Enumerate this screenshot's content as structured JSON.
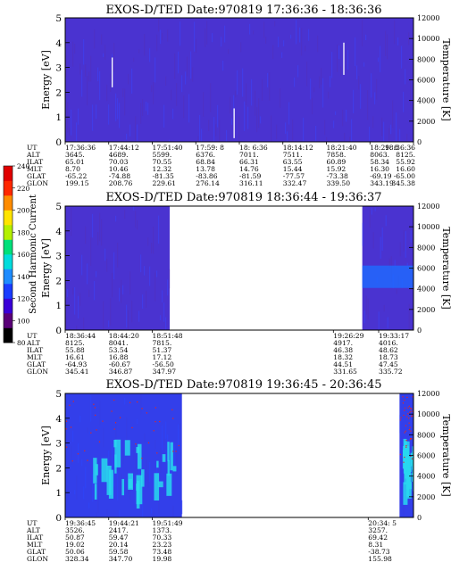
{
  "chart_data": [
    {
      "type": "heatmap",
      "title": "EXOS-D/TED   Date:970819   17:36:36 - 18:36:36",
      "ylabel": "Energy [eV]",
      "y2label": "Temperature [K]",
      "ylim": [
        0,
        5
      ],
      "y2lim": [
        0,
        12000
      ],
      "yticks": [
        "0",
        "1",
        "2",
        "3",
        "4",
        "5"
      ],
      "y2ticks": [
        "0",
        "2000",
        "4000",
        "6000",
        "8000",
        "10000",
        "12000"
      ],
      "data_extent": [
        0,
        1
      ],
      "style": "dense",
      "spikes": [
        {
          "x": 0.135,
          "y0": 2.2,
          "y1": 3.4
        },
        {
          "x": 0.485,
          "y0": 0.15,
          "y1": 1.35
        },
        {
          "x": 0.8,
          "y0": 2.7,
          "y1": 4.0
        }
      ],
      "table": {
        "row_labels": [
          "UT",
          "ALT",
          "ILAT",
          "MLT",
          "GLAT",
          "GLON"
        ],
        "columns": [
          {
            "pos": 0.0,
            "values": [
              "17:36:36",
              "3645.",
              "65.01",
              "8.70",
              "-65.22",
              "199.15"
            ]
          },
          {
            "pos": 0.125,
            "values": [
              "17:44:12",
              "4689.",
              "70.03",
              "10.46",
              "-74.88",
              "208.76"
            ]
          },
          {
            "pos": 0.25,
            "values": [
              "17:51:40",
              "5599.",
              "70.55",
              "12.32",
              "-81.35",
              "229.61"
            ]
          },
          {
            "pos": 0.375,
            "values": [
              "17:59: 8",
              "6376.",
              "68.84",
              "13.78",
              "-83.86",
              "276.14"
            ]
          },
          {
            "pos": 0.5,
            "values": [
              "18: 6:36",
              "7011.",
              "66.31",
              "14.76",
              "-81.59",
              "316.11"
            ]
          },
          {
            "pos": 0.625,
            "values": [
              "18:14:12",
              "7511.",
              "63.55",
              "15.44",
              "-77.57",
              "332.47"
            ]
          },
          {
            "pos": 0.75,
            "values": [
              "18:21:40",
              "7858.",
              "60.89",
              "15.92",
              "-73.38",
              "339.50"
            ]
          },
          {
            "pos": 0.875,
            "values": [
              "18:29: 8",
              "8063.",
              "58.34",
              "16.30",
              "-69.19",
              "343.19"
            ]
          },
          {
            "pos": 1.0,
            "values": [
              "18:36:36",
              "8125.",
              "55.92",
              "16.60",
              "-65.00",
              "345.38"
            ]
          }
        ]
      }
    },
    {
      "type": "heatmap",
      "title": "EXOS-D/TED   Date:970819   18:36:44 - 19:36:37",
      "ylabel": "Energy [eV]",
      "y2label": "Temperature [K]",
      "ylim": [
        0,
        5
      ],
      "y2lim": [
        0,
        12000
      ],
      "yticks": [
        "0",
        "1",
        "2",
        "3",
        "4",
        "5"
      ],
      "y2ticks": [
        "0",
        "2000",
        "4000",
        "6000",
        "8000",
        "10000",
        "12000"
      ],
      "data_extent": [
        0,
        0.3
      ],
      "right_extent": [
        0.853,
        1.0
      ],
      "style": "sparse",
      "table": {
        "row_labels": [
          "UT",
          "ALT",
          "ILAT",
          "MLT",
          "GLAT",
          "GLON"
        ],
        "columns": [
          {
            "pos": 0.0,
            "values": [
              "18:36:44",
              "8125.",
              "55.88",
              "16.61",
              "-64.93",
              "345.41"
            ]
          },
          {
            "pos": 0.125,
            "values": [
              "18:44:20",
              "8041.",
              "53.54",
              "16.88",
              "-60.67",
              "346.87"
            ]
          },
          {
            "pos": 0.25,
            "values": [
              "18:51:48",
              "7815.",
              "51.37",
              "17.12",
              "-56.50",
              "347.97"
            ]
          },
          {
            "pos": 0.77,
            "values": [
              "19:26:29",
              "4917.",
              "46.38",
              "18.32",
              "44.51",
              "331.65"
            ]
          },
          {
            "pos": 0.9,
            "values": [
              "19:33:17",
              "4016.",
              "48.62",
              "18.73",
              "47.45",
              "335.72"
            ]
          }
        ]
      }
    },
    {
      "type": "heatmap",
      "title": "EXOS-D/TED   Date:970819   19:36:45 - 20:36:45",
      "ylabel": "Energy [eV]",
      "y2label": "Temperature [K]",
      "ylim": [
        0,
        5
      ],
      "y2lim": [
        0,
        12000
      ],
      "yticks": [
        "0",
        "1",
        "2",
        "3",
        "4",
        "5"
      ],
      "y2ticks": [
        "0",
        "2000",
        "4000",
        "6000",
        "8000",
        "10000",
        "12000"
      ],
      "data_extent": [
        0,
        0.335
      ],
      "right_extent": [
        0.96,
        1.0
      ],
      "style": "bright",
      "table": {
        "row_labels": [
          "UT",
          "ALT",
          "ILAT",
          "MLT",
          "GLAT",
          "GLON"
        ],
        "columns": [
          {
            "pos": 0.0,
            "values": [
              "19:36:45",
              "3526.",
              "50.87",
              "19.02",
              "50.06",
              "328.34"
            ]
          },
          {
            "pos": 0.125,
            "values": [
              "19:44:21",
              "2417.",
              "59.47",
              "20.14",
              "59.58",
              "347.70"
            ]
          },
          {
            "pos": 0.25,
            "values": [
              "19:51:49",
              "1373.",
              "70.33",
              "23.23",
              "73.48",
              "19.98"
            ]
          },
          {
            "pos": 0.87,
            "values": [
              "20:34: 5",
              "3257.",
              "69.42",
              "8.31",
              "-38.73",
              "155.98"
            ]
          }
        ]
      }
    }
  ],
  "colorbar": {
    "label": "Second Harmonic Current",
    "ticks": [
      "80",
      "100",
      "120",
      "140",
      "160",
      "180",
      "200",
      "220",
      "240"
    ],
    "colors": [
      "#000000",
      "#5a0078",
      "#3a00d8",
      "#1a3cff",
      "#1e8cff",
      "#00dcdc",
      "#00e07a",
      "#b4f000",
      "#ffe400",
      "#ff8c00",
      "#ff2800",
      "#e00000"
    ]
  },
  "colors": {
    "background": "#3c2fd3",
    "base_a": "#4a33d0",
    "base_b": "#3e3ef0",
    "bright": "#2048ff",
    "cyan": "#28d8ee",
    "red": "#e8281a"
  }
}
